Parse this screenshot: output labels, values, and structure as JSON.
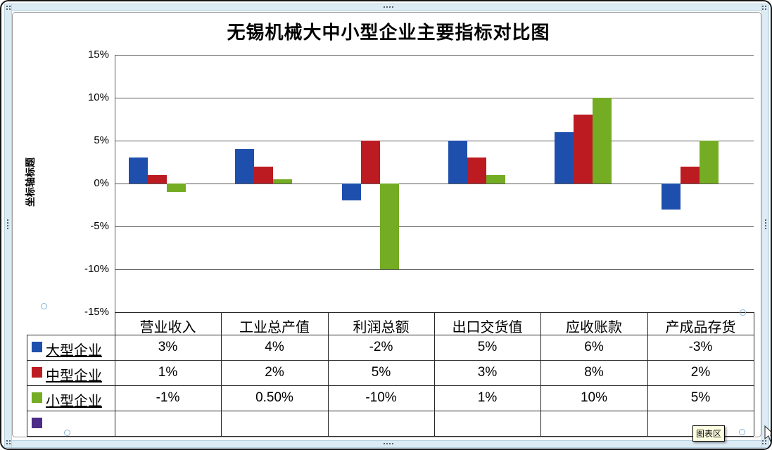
{
  "chart_data": {
    "type": "bar",
    "title": "无锡机械大中小型企业主要指标对比图",
    "categories": [
      "营业收入",
      "工业总产值",
      "利润总额",
      "出口交货值",
      "应收账款",
      "产成品存货"
    ],
    "series": [
      {
        "name": "大型企业",
        "color": "#1F4FAD",
        "values": [
          3,
          4,
          -2,
          5,
          6,
          -3
        ],
        "labels": [
          "3%",
          "4%",
          "-2%",
          "5%",
          "6%",
          "-3%"
        ]
      },
      {
        "name": "中型企业",
        "color": "#BC1B21",
        "values": [
          1,
          2,
          5,
          3,
          8,
          2
        ],
        "labels": [
          "1%",
          "2%",
          "5%",
          "3%",
          "8%",
          "2%"
        ]
      },
      {
        "name": "小型企业",
        "color": "#74AC23",
        "values": [
          -1,
          0.5,
          -10,
          1,
          10,
          5
        ],
        "labels": [
          "-1%",
          "0.50%",
          "-10%",
          "1%",
          "10%",
          "5%"
        ]
      },
      {
        "name": "",
        "color": "#4C2C86",
        "values": [],
        "labels": [
          "",
          "",
          "",
          "",
          "",
          ""
        ]
      }
    ],
    "y_axis": {
      "title": "坐标轴标题",
      "ticks": [
        "15%",
        "10%",
        "5%",
        "0%",
        "-5%",
        "-10%",
        "-15%"
      ],
      "min": -15,
      "max": 15,
      "step": 5
    },
    "grid": true,
    "legend_position": "data-table-left"
  },
  "overlay": {
    "chart_area_tooltip": "图表区"
  }
}
